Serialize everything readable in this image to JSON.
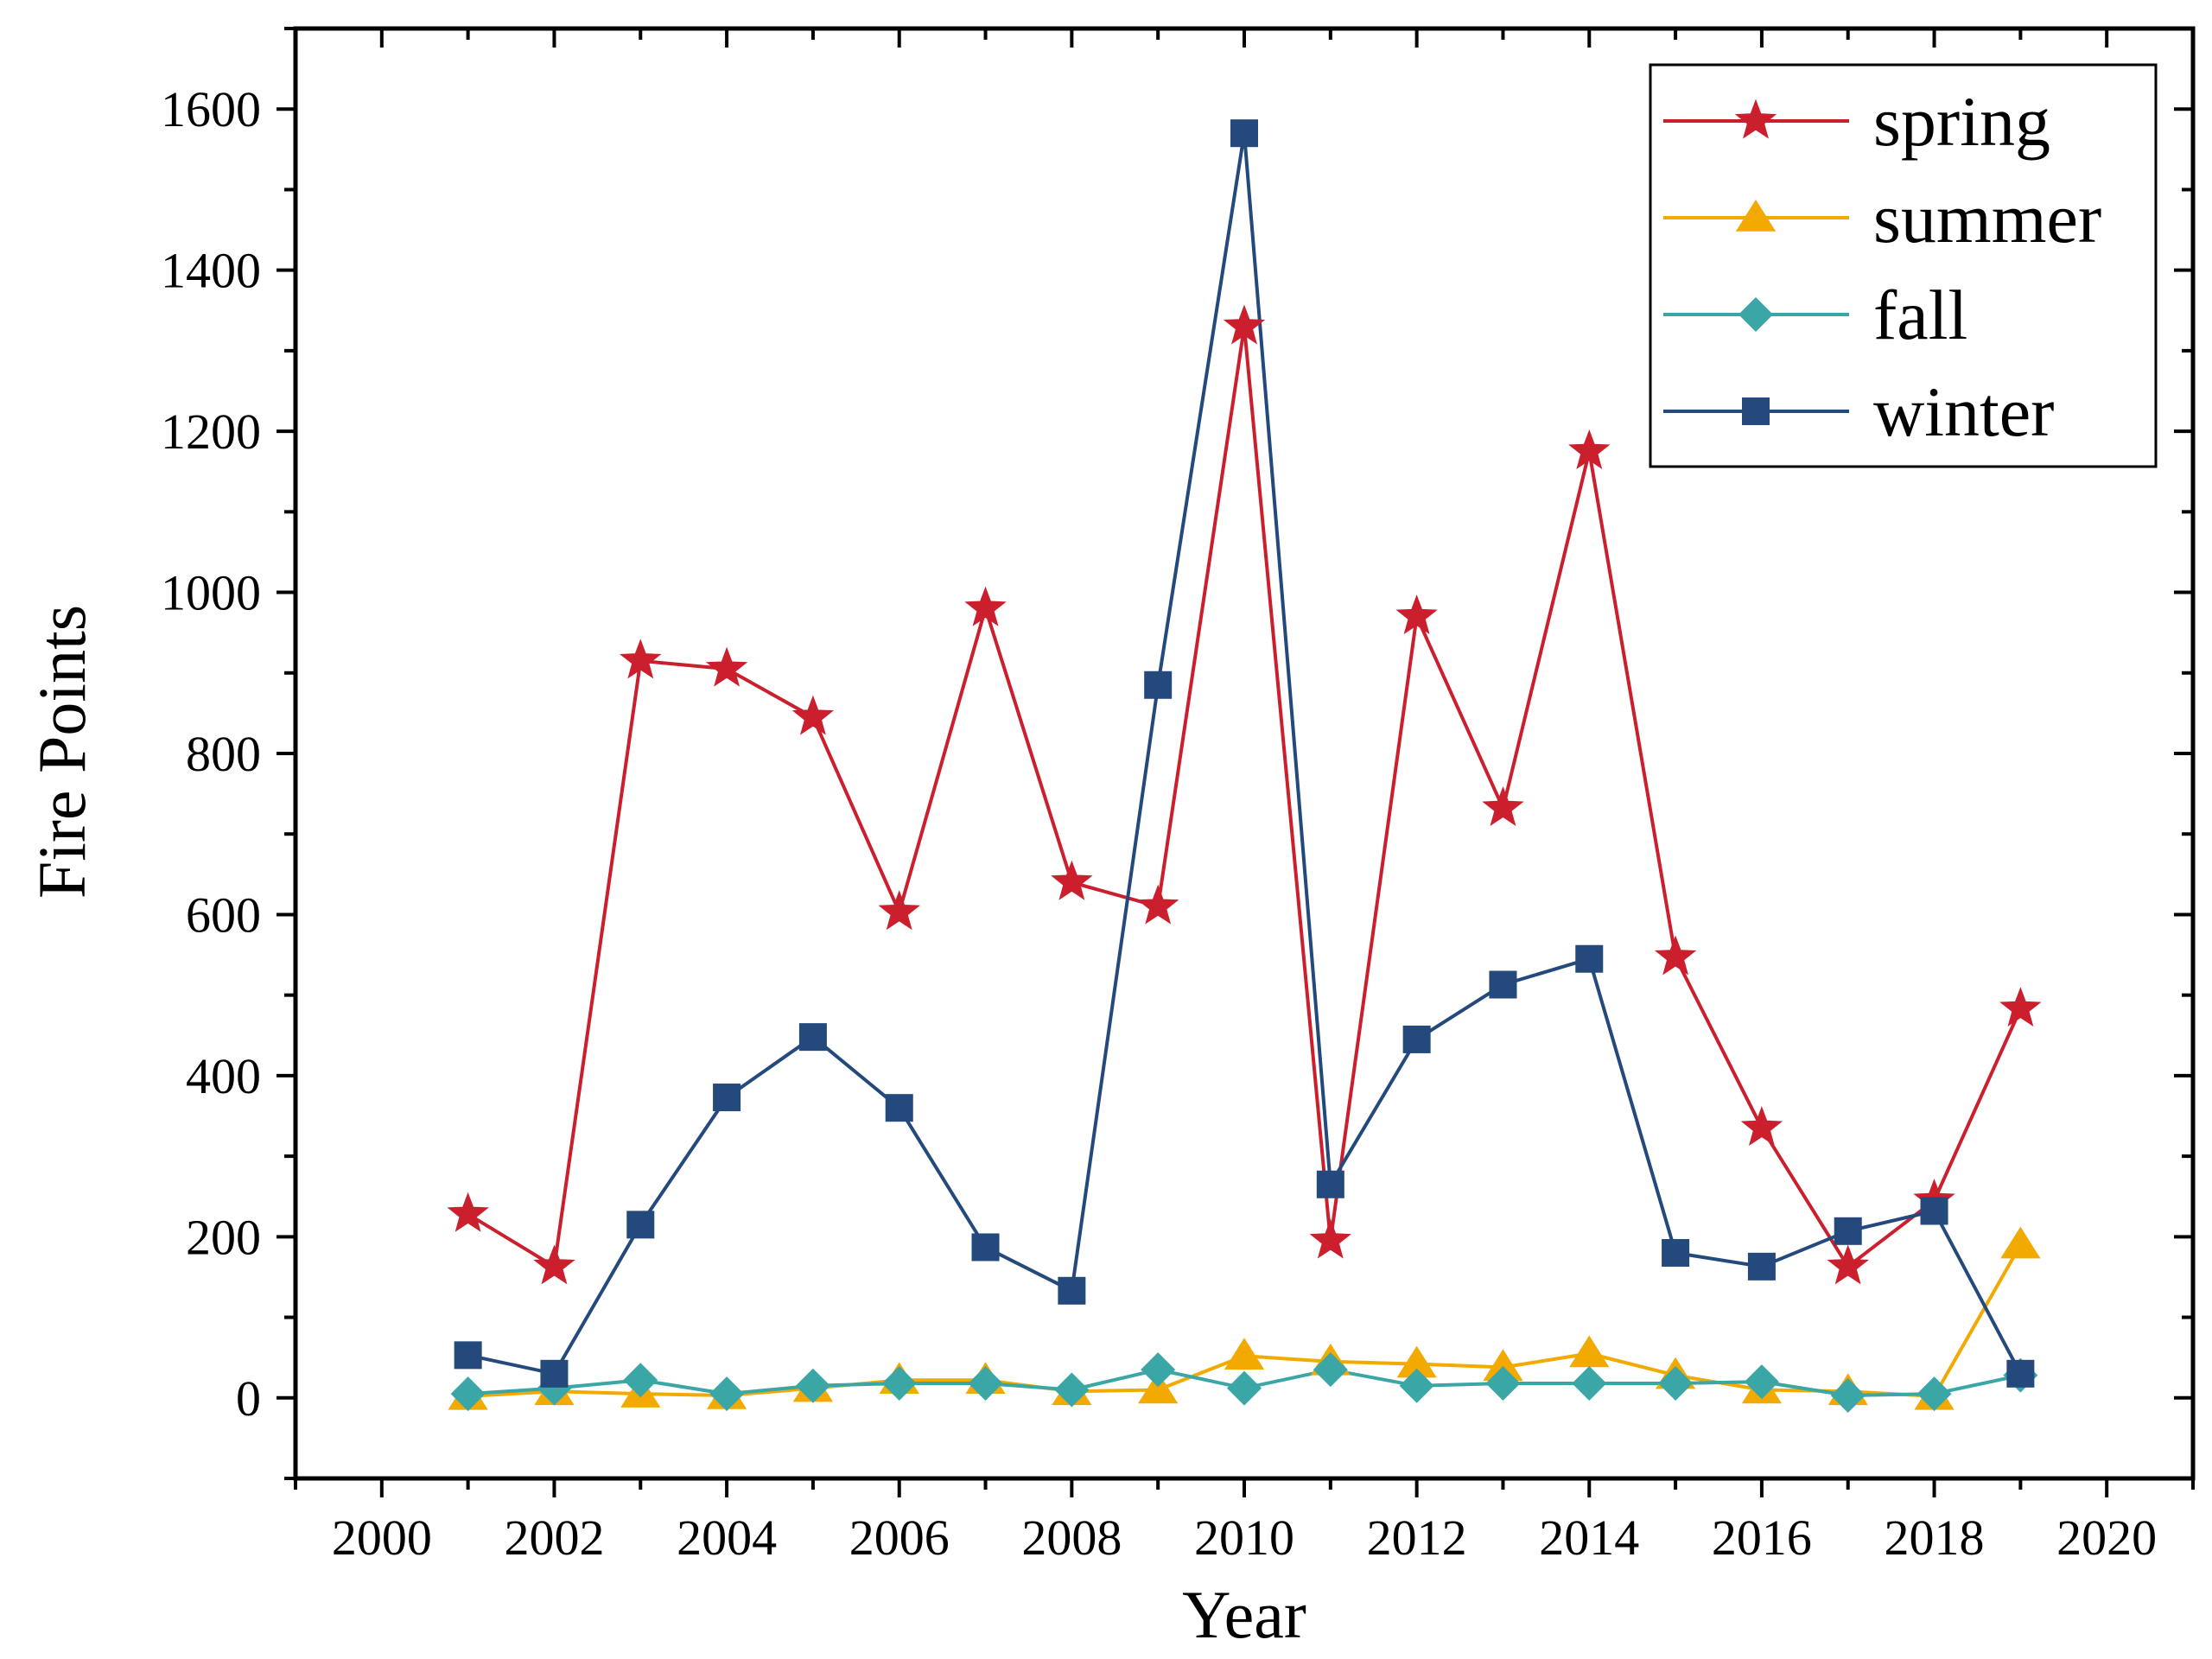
{
  "chart_data": {
    "type": "line",
    "title": "",
    "xlabel": "Year",
    "ylabel": "Fire Points",
    "xlim": [
      1999,
      2021
    ],
    "ylim": [
      -100,
      1700
    ],
    "xticks": [
      2000,
      2002,
      2004,
      2006,
      2008,
      2010,
      2012,
      2014,
      2016,
      2018,
      2020
    ],
    "xtick_labels": [
      "2000",
      "2002",
      "2004",
      "2006",
      "2008",
      "2010",
      "2012",
      "2014",
      "2016",
      "2018",
      "2020"
    ],
    "yticks": [
      0,
      200,
      400,
      600,
      800,
      1000,
      1200,
      1400,
      1600
    ],
    "ytick_labels": [
      "0",
      "200",
      "400",
      "600",
      "800",
      "1000",
      "1200",
      "1400",
      "1600"
    ],
    "legend_position": "top-right",
    "x": [
      2001,
      2002,
      2003,
      2004,
      2005,
      2006,
      2007,
      2008,
      2009,
      2010,
      2011,
      2012,
      2013,
      2014,
      2015,
      2016,
      2017,
      2018,
      2019
    ],
    "series": [
      {
        "name": "spring",
        "color": "#cc1f2e",
        "marker": "star",
        "values": [
          228,
          163,
          915,
          905,
          845,
          603,
          980,
          640,
          610,
          1330,
          195,
          970,
          732,
          1175,
          547,
          335,
          163,
          245,
          483
        ]
      },
      {
        "name": "summer",
        "color": "#f2a900",
        "marker": "triangle",
        "values": [
          2,
          8,
          5,
          3,
          12,
          22,
          22,
          8,
          10,
          52,
          45,
          42,
          38,
          55,
          28,
          10,
          8,
          2,
          190
        ]
      },
      {
        "name": "fall",
        "color": "#3aa6a6",
        "marker": "diamond",
        "values": [
          5,
          12,
          22,
          5,
          15,
          18,
          18,
          10,
          35,
          12,
          35,
          15,
          18,
          18,
          18,
          20,
          3,
          5,
          28
        ]
      },
      {
        "name": "winter",
        "color": "#23497d",
        "marker": "square",
        "values": [
          53,
          30,
          215,
          373,
          448,
          360,
          187,
          133,
          885,
          1570,
          265,
          445,
          513,
          545,
          180,
          163,
          207,
          232,
          30
        ]
      }
    ]
  }
}
